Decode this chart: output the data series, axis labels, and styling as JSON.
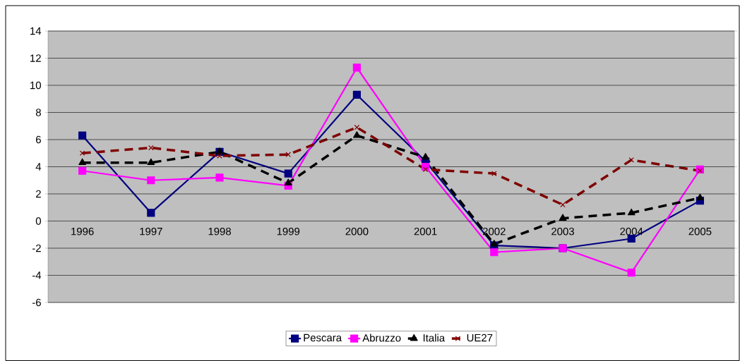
{
  "chart_data": {
    "type": "line",
    "categories": [
      "1996",
      "1997",
      "1998",
      "1999",
      "2000",
      "2001",
      "2002",
      "2003",
      "2004",
      "2005"
    ],
    "series": [
      {
        "name": "Pescara",
        "color": "#000080",
        "marker": "square",
        "line_style": "solid",
        "values": [
          6.3,
          0.6,
          5.1,
          3.5,
          9.3,
          4.4,
          -1.8,
          -2.0,
          -1.3,
          1.5
        ]
      },
      {
        "name": "Abruzzo",
        "color": "#ff00ff",
        "marker": "square",
        "line_style": "solid",
        "values": [
          3.7,
          3.0,
          3.2,
          2.6,
          11.3,
          4.0,
          -2.3,
          -2.0,
          -3.8,
          3.8
        ]
      },
      {
        "name": "Italia",
        "color": "#000000",
        "marker": "triangle",
        "line_style": "dashed",
        "values": [
          4.3,
          4.3,
          5.1,
          2.8,
          6.3,
          4.7,
          -1.7,
          0.2,
          0.6,
          1.7
        ]
      },
      {
        "name": "UE27",
        "color": "#800000",
        "marker": "cross",
        "line_style": "dashed",
        "values": [
          5.0,
          5.4,
          4.8,
          4.9,
          6.9,
          3.8,
          3.5,
          1.2,
          4.5,
          3.7
        ]
      }
    ],
    "ylim": [
      -6,
      14
    ],
    "yticks": [
      -6,
      -4,
      -2,
      0,
      2,
      4,
      6,
      8,
      10,
      12,
      14
    ],
    "grid": "y",
    "legend": "bottom"
  }
}
